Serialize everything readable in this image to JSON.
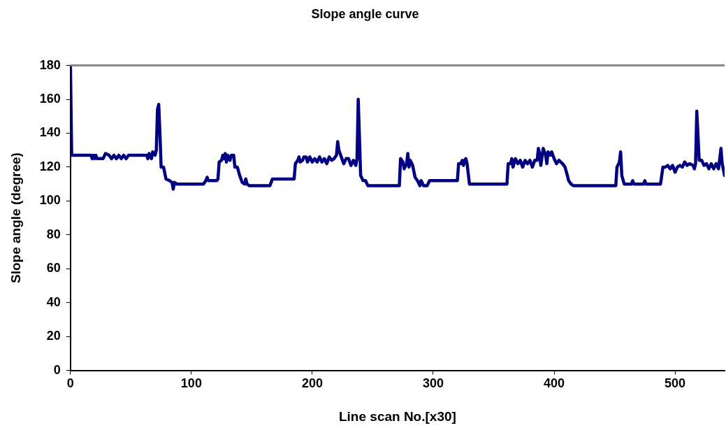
{
  "chart_data": {
    "type": "line",
    "title": "Slope angle curve",
    "xlabel": "Line scan No.[x30]",
    "ylabel": "Slope angle (degree)",
    "xlim": [
      0,
      541
    ],
    "xticks": [
      0,
      100,
      200,
      300,
      400,
      500
    ],
    "ylim": [
      0,
      180
    ],
    "yticks": [
      0,
      20,
      40,
      60,
      80,
      100,
      120,
      140,
      160,
      180
    ],
    "grid": false,
    "legend": false,
    "marker": "none",
    "line_style": "solid",
    "series": [
      {
        "color": "#000080",
        "x": [
          0,
          1,
          17,
          18,
          19,
          20,
          21,
          22,
          27,
          29,
          32,
          34,
          36,
          38,
          40,
          42,
          44,
          46,
          48,
          63,
          64,
          65,
          67,
          68,
          70,
          71,
          72,
          73,
          74,
          75,
          77,
          79,
          82,
          84,
          85,
          86,
          88,
          110,
          112,
          113,
          114,
          121,
          122,
          123,
          125,
          126,
          127,
          128,
          129,
          130,
          132,
          133,
          135,
          136,
          138,
          140,
          142,
          144,
          145,
          146,
          148,
          165,
          167,
          185,
          186,
          188,
          189,
          190,
          192,
          193,
          195,
          196,
          198,
          200,
          202,
          204,
          206,
          208,
          210,
          212,
          214,
          216,
          218,
          220,
          221,
          222,
          224,
          226,
          228,
          230,
          232,
          234,
          236,
          237,
          238,
          240,
          242,
          244,
          246,
          272,
          273,
          275,
          276,
          278,
          279,
          280,
          281,
          283,
          285,
          287,
          289,
          290,
          292,
          295,
          297,
          320,
          321,
          323,
          324,
          325,
          326,
          327,
          328,
          330,
          361,
          362,
          364,
          365,
          366,
          368,
          370,
          372,
          374,
          376,
          378,
          380,
          382,
          384,
          386,
          387,
          388,
          389,
          391,
          393,
          394,
          395,
          397,
          398,
          400,
          402,
          404,
          407,
          409,
          411,
          412,
          414,
          416,
          451,
          452,
          454,
          455,
          456,
          458,
          464,
          465,
          466,
          474,
          475,
          476,
          488,
          490,
          492,
          494,
          496,
          498,
          500,
          502,
          504,
          506,
          508,
          510,
          512,
          515,
          516,
          517,
          518,
          520,
          522,
          524,
          526,
          528,
          530,
          532,
          534,
          536,
          538,
          539,
          541
        ],
        "values": [
          180,
          127,
          127,
          125,
          127,
          125,
          127,
          125,
          125,
          128,
          127,
          125,
          127,
          125,
          127,
          125,
          127,
          125,
          127,
          127,
          125,
          128,
          125,
          129,
          127,
          130,
          154,
          157,
          140,
          120,
          120,
          113,
          112,
          111,
          107,
          111,
          110,
          110,
          112,
          114,
          112,
          112,
          113,
          123,
          124,
          127,
          125,
          128,
          123,
          127,
          124,
          127,
          127,
          120,
          120,
          115,
          111,
          110,
          113,
          110,
          109,
          109,
          113,
          113,
          122,
          124,
          126,
          123,
          124,
          126,
          126,
          123,
          126,
          123,
          125,
          123,
          126,
          123,
          125,
          122,
          126,
          124,
          125,
          127,
          135,
          130,
          126,
          122,
          125,
          125,
          121,
          124,
          121,
          125,
          160,
          115,
          112,
          112,
          109,
          109,
          125,
          123,
          119,
          122,
          128,
          120,
          124,
          121,
          114,
          112,
          109,
          112,
          109,
          109,
          112,
          112,
          122,
          122,
          124,
          121,
          124,
          125,
          122,
          110,
          110,
          122,
          122,
          125,
          120,
          125,
          122,
          124,
          120,
          124,
          122,
          124,
          120,
          124,
          124,
          131,
          128,
          121,
          131,
          127,
          122,
          129,
          127,
          129,
          125,
          122,
          124,
          122,
          120,
          115,
          112,
          110,
          109,
          109,
          120,
          123,
          129,
          115,
          110,
          110,
          112,
          110,
          110,
          112,
          110,
          110,
          120,
          120,
          121,
          119,
          121,
          117,
          120,
          121,
          120,
          123,
          121,
          122,
          121,
          119,
          122,
          153,
          124,
          124,
          121,
          122,
          119,
          122,
          119,
          122,
          119,
          131,
          122,
          115
        ]
      }
    ]
  }
}
